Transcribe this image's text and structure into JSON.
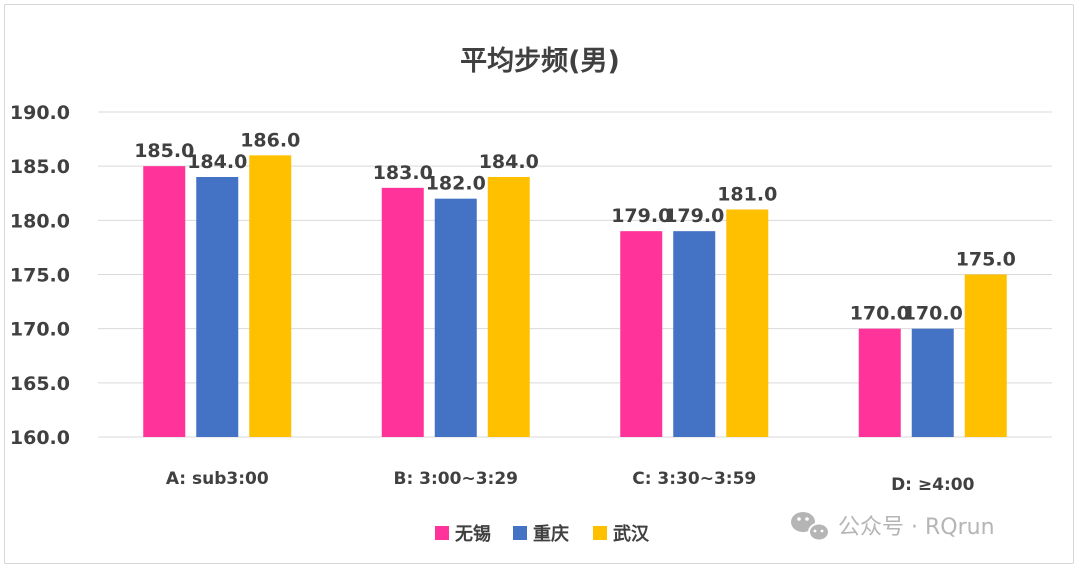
{
  "chart_data": {
    "type": "bar",
    "title": "平均步频(男)",
    "categories": [
      "A: sub3:00",
      "B: 3:00~3:29",
      "C: 3:30~3:59",
      "D: ≥4:00"
    ],
    "series": [
      {
        "name": "无锡",
        "color": "#ff3399",
        "values": [
          185.0,
          183.0,
          179.0,
          170.0
        ]
      },
      {
        "name": "重庆",
        "color": "#4472c4",
        "values": [
          184.0,
          182.0,
          179.0,
          170.0
        ]
      },
      {
        "name": "武汉",
        "color": "#ffc000",
        "values": [
          186.0,
          184.0,
          181.0,
          175.0
        ]
      }
    ],
    "ylim": [
      160,
      190
    ],
    "yticks": [
      "160.0",
      "165.0",
      "170.0",
      "175.0",
      "180.0",
      "185.0",
      "190.0"
    ],
    "grid": true,
    "legend_position": "bottom"
  },
  "watermark": {
    "text": "公众号 · RQrun",
    "icon": "wechat-icon"
  }
}
